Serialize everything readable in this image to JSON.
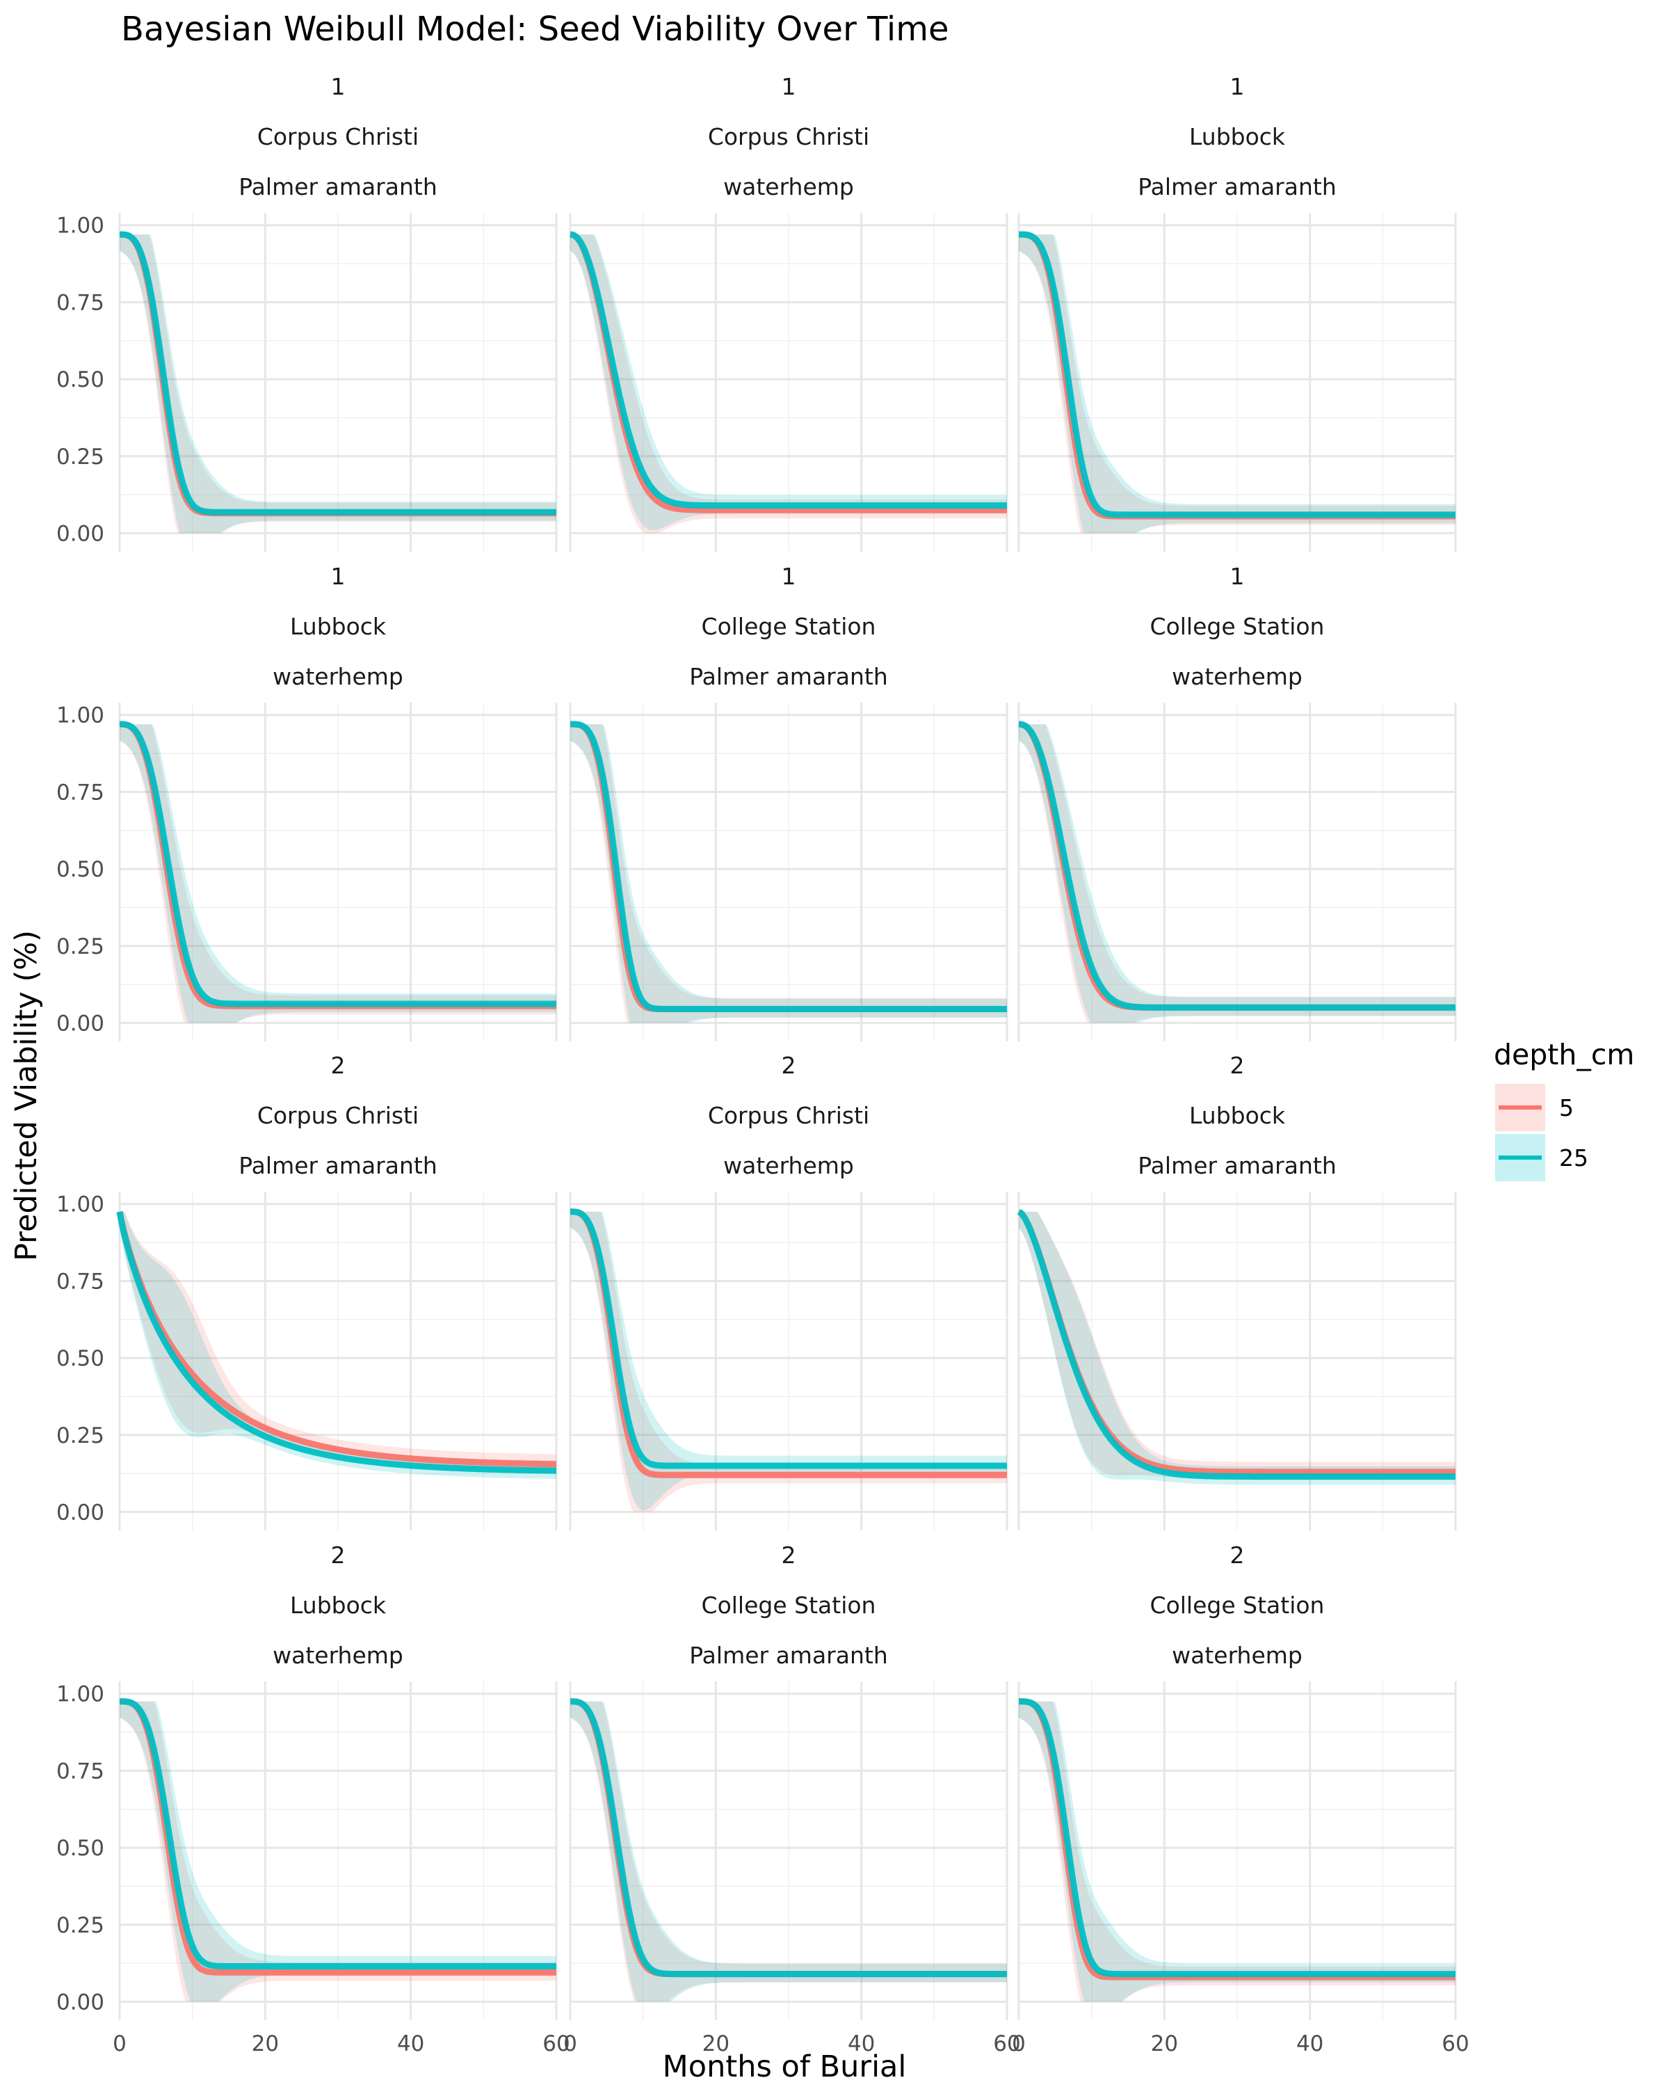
{
  "chart_data": {
    "type": "line",
    "title": "Bayesian Weibull Model: Seed Viability Over Time",
    "xlabel": "Months of Burial",
    "ylabel": "Predicted Viability (%)",
    "xlim": [
      0,
      60
    ],
    "ylim": [
      0,
      1
    ],
    "x_ticks": [
      "0",
      "20",
      "40",
      "60"
    ],
    "y_ticks": [
      "0.00",
      "0.25",
      "0.50",
      "0.75",
      "1.00"
    ],
    "grid": true,
    "legend": {
      "title": "depth_cm",
      "position": "right",
      "items": [
        {
          "label": "5",
          "color": "#F8766D"
        },
        {
          "label": "25",
          "color": "#00BFC4"
        }
      ]
    },
    "colors": {
      "depth_5": "#F8766D",
      "depth_25": "#00BFC4"
    },
    "facets": [
      {
        "strip": [
          "1",
          "Corpus Christi",
          "Palmer amaranth"
        ],
        "series": [
          {
            "name": "5",
            "start": 0.97,
            "end": 0.065,
            "t50": 5.8,
            "shape": 3.2
          },
          {
            "name": "25",
            "start": 0.97,
            "end": 0.068,
            "t50": 6.0,
            "shape": 3.2
          }
        ]
      },
      {
        "strip": [
          "1",
          "Corpus Christi",
          "waterhemp"
        ],
        "series": [
          {
            "name": "5",
            "start": 0.97,
            "end": 0.075,
            "t50": 5.8,
            "shape": 2.2
          },
          {
            "name": "25",
            "start": 0.97,
            "end": 0.09,
            "t50": 6.0,
            "shape": 2.2
          }
        ]
      },
      {
        "strip": [
          "1",
          "Lubbock",
          "Palmer amaranth"
        ],
        "series": [
          {
            "name": "5",
            "start": 0.97,
            "end": 0.055,
            "t50": 6.4,
            "shape": 3.5
          },
          {
            "name": "25",
            "start": 0.97,
            "end": 0.06,
            "t50": 6.7,
            "shape": 3.5
          }
        ]
      },
      {
        "strip": [
          "1",
          "Lubbock",
          "waterhemp"
        ],
        "series": [
          {
            "name": "5",
            "start": 0.97,
            "end": 0.055,
            "t50": 6.4,
            "shape": 3.0
          },
          {
            "name": "25",
            "start": 0.97,
            "end": 0.062,
            "t50": 6.7,
            "shape": 3.0
          }
        ]
      },
      {
        "strip": [
          "1",
          "College Station",
          "Palmer amaranth"
        ],
        "series": [
          {
            "name": "5",
            "start": 0.97,
            "end": 0.045,
            "t50": 6.0,
            "shape": 3.6
          },
          {
            "name": "25",
            "start": 0.97,
            "end": 0.045,
            "t50": 6.3,
            "shape": 3.6
          }
        ]
      },
      {
        "strip": [
          "1",
          "College Station",
          "waterhemp"
        ],
        "series": [
          {
            "name": "5",
            "start": 0.97,
            "end": 0.05,
            "t50": 6.2,
            "shape": 2.4
          },
          {
            "name": "25",
            "start": 0.97,
            "end": 0.05,
            "t50": 6.5,
            "shape": 2.4
          }
        ]
      },
      {
        "strip": [
          "2",
          "Corpus Christi",
          "Palmer amaranth"
        ],
        "series": [
          {
            "name": "5",
            "start": 0.975,
            "end": 0.15,
            "t50": 6.5,
            "shape": 0.9
          },
          {
            "name": "25",
            "start": 0.975,
            "end": 0.13,
            "t50": 6.2,
            "shape": 0.9
          }
        ]
      },
      {
        "strip": [
          "2",
          "Corpus Christi",
          "waterhemp"
        ],
        "series": [
          {
            "name": "5",
            "start": 0.975,
            "end": 0.12,
            "t50": 5.8,
            "shape": 3.2
          },
          {
            "name": "25",
            "start": 0.975,
            "end": 0.15,
            "t50": 6.0,
            "shape": 3.2
          }
        ]
      },
      {
        "strip": [
          "2",
          "Lubbock",
          "Palmer amaranth"
        ],
        "series": [
          {
            "name": "5",
            "start": 0.975,
            "end": 0.13,
            "t50": 6.6,
            "shape": 1.6
          },
          {
            "name": "25",
            "start": 0.975,
            "end": 0.115,
            "t50": 6.6,
            "shape": 1.6
          }
        ]
      },
      {
        "strip": [
          "2",
          "Lubbock",
          "waterhemp"
        ],
        "series": [
          {
            "name": "5",
            "start": 0.975,
            "end": 0.095,
            "t50": 6.5,
            "shape": 3.4
          },
          {
            "name": "25",
            "start": 0.975,
            "end": 0.115,
            "t50": 6.8,
            "shape": 3.4
          }
        ]
      },
      {
        "strip": [
          "2",
          "College Station",
          "Palmer amaranth"
        ],
        "series": [
          {
            "name": "5",
            "start": 0.975,
            "end": 0.09,
            "t50": 6.2,
            "shape": 3.2
          },
          {
            "name": "25",
            "start": 0.975,
            "end": 0.09,
            "t50": 6.4,
            "shape": 3.2
          }
        ]
      },
      {
        "strip": [
          "2",
          "College Station",
          "waterhemp"
        ],
        "series": [
          {
            "name": "5",
            "start": 0.975,
            "end": 0.08,
            "t50": 6.3,
            "shape": 3.6
          },
          {
            "name": "25",
            "start": 0.975,
            "end": 0.09,
            "t50": 6.6,
            "shape": 3.6
          }
        ]
      }
    ]
  }
}
